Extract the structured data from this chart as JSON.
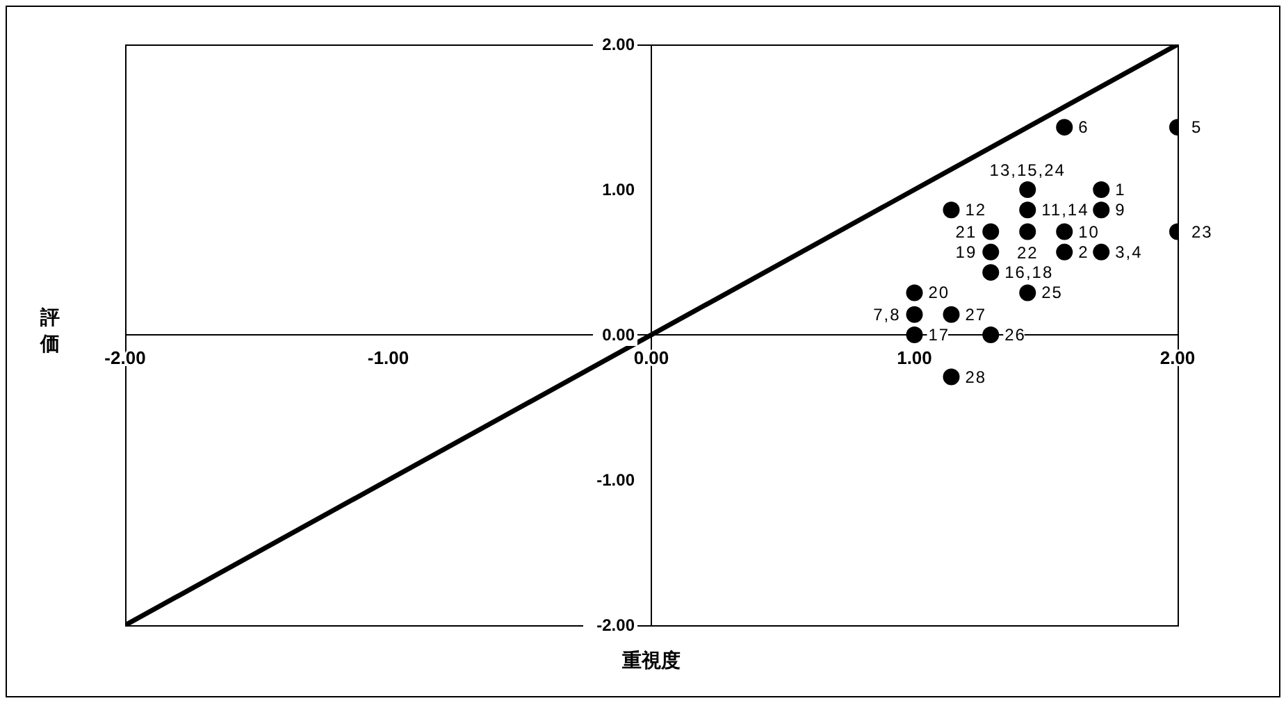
{
  "chart_data": {
    "type": "scatter",
    "xlabel": "重視度",
    "ylabel": "評価",
    "xlim": [
      -2,
      2
    ],
    "ylim": [
      -2,
      2
    ],
    "xticks": [
      {
        "value": -2,
        "label": "-2.00"
      },
      {
        "value": -1,
        "label": "-1.00"
      },
      {
        "value": 0,
        "label": "0.00"
      },
      {
        "value": 1,
        "label": "1.00"
      },
      {
        "value": 2,
        "label": "2.00"
      }
    ],
    "yticks": [
      {
        "value": -2,
        "label": "-2.00"
      },
      {
        "value": -1,
        "label": "-1.00"
      },
      {
        "value": 0,
        "label": "0.00"
      },
      {
        "value": 1,
        "label": "1.00"
      },
      {
        "value": 2,
        "label": "2.00"
      }
    ],
    "grid": false,
    "marker": "circle",
    "series": [
      {
        "type": "line",
        "color": "#000000",
        "x": [
          -2,
          2
        ],
        "values": [
          -2,
          2
        ],
        "marker": "none",
        "line_style": "solid"
      },
      {
        "color": "#000000",
        "x": [
          1.57,
          2.0,
          1.71,
          1.43,
          1.43,
          1.71,
          1.14,
          1.29,
          1.43,
          1.57,
          2.0,
          1.29,
          1.57,
          1.71,
          1.29,
          1.43,
          1.0,
          1.0,
          1.14,
          1.0,
          1.29,
          1.14
        ],
        "values": [
          1.43,
          1.43,
          1.0,
          1.0,
          0.86,
          0.86,
          0.86,
          0.71,
          0.71,
          0.71,
          0.71,
          0.57,
          0.57,
          0.57,
          0.43,
          0.29,
          0.29,
          0.14,
          0.14,
          0.0,
          0.0,
          -0.29
        ]
      }
    ],
    "annotations": [
      {
        "text": "6",
        "x": 1.57,
        "y": 1.43
      },
      {
        "text": "5",
        "x": 2.0,
        "y": 1.43
      },
      {
        "text": "1",
        "x": 1.71,
        "y": 1.0
      },
      {
        "text": "13,15,24",
        "x": 1.43,
        "y": 1.0
      },
      {
        "text": "11,14",
        "x": 1.43,
        "y": 0.86
      },
      {
        "text": "9",
        "x": 1.71,
        "y": 0.86
      },
      {
        "text": "12",
        "x": 1.14,
        "y": 0.86
      },
      {
        "text": "21",
        "x": 1.29,
        "y": 0.71
      },
      {
        "text": "22",
        "x": 1.43,
        "y": 0.71
      },
      {
        "text": "10",
        "x": 1.57,
        "y": 0.71
      },
      {
        "text": "23",
        "x": 2.0,
        "y": 0.71
      },
      {
        "text": "19",
        "x": 1.29,
        "y": 0.57
      },
      {
        "text": "2",
        "x": 1.57,
        "y": 0.57
      },
      {
        "text": "3,4",
        "x": 1.71,
        "y": 0.57
      },
      {
        "text": "16,18",
        "x": 1.29,
        "y": 0.43
      },
      {
        "text": "25",
        "x": 1.43,
        "y": 0.29
      },
      {
        "text": "20",
        "x": 1.0,
        "y": 0.29
      },
      {
        "text": "7,8",
        "x": 1.0,
        "y": 0.14
      },
      {
        "text": "27",
        "x": 1.14,
        "y": 0.14
      },
      {
        "text": "17",
        "x": 1.0,
        "y": 0.0
      },
      {
        "text": "26",
        "x": 1.29,
        "y": 0.0
      },
      {
        "text": "28",
        "x": 1.14,
        "y": -0.29
      }
    ]
  }
}
